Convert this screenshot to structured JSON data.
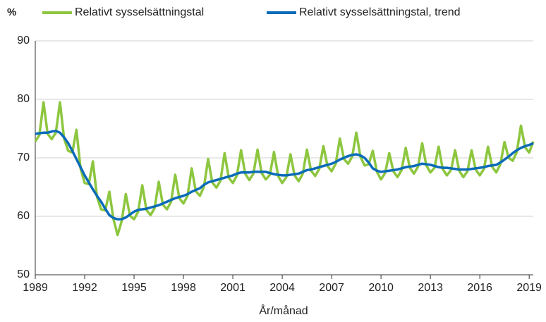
{
  "chart_data": {
    "type": "line",
    "y_unit": "%",
    "xlabel": "År/månad",
    "x": [
      1989,
      1989.25,
      1989.5,
      1989.75,
      1990,
      1990.25,
      1990.5,
      1990.75,
      1991,
      1991.25,
      1991.5,
      1991.75,
      1992,
      1992.25,
      1992.5,
      1992.75,
      1993,
      1993.25,
      1993.5,
      1993.75,
      1994,
      1994.25,
      1994.5,
      1994.75,
      1995,
      1995.25,
      1995.5,
      1995.75,
      1996,
      1996.25,
      1996.5,
      1996.75,
      1997,
      1997.25,
      1997.5,
      1997.75,
      1998,
      1998.25,
      1998.5,
      1998.75,
      1999,
      1999.25,
      1999.5,
      1999.75,
      2000,
      2000.25,
      2000.5,
      2000.75,
      2001,
      2001.25,
      2001.5,
      2001.75,
      2002,
      2002.25,
      2002.5,
      2002.75,
      2003,
      2003.25,
      2003.5,
      2003.75,
      2004,
      2004.25,
      2004.5,
      2004.75,
      2005,
      2005.25,
      2005.5,
      2005.75,
      2006,
      2006.25,
      2006.5,
      2006.75,
      2007,
      2007.25,
      2007.5,
      2007.75,
      2008,
      2008.25,
      2008.5,
      2008.75,
      2009,
      2009.25,
      2009.5,
      2009.75,
      2010,
      2010.25,
      2010.5,
      2010.75,
      2011,
      2011.25,
      2011.5,
      2011.75,
      2012,
      2012.25,
      2012.5,
      2012.75,
      2013,
      2013.25,
      2013.5,
      2013.75,
      2014,
      2014.25,
      2014.5,
      2014.75,
      2015,
      2015.25,
      2015.5,
      2015.75,
      2016,
      2016.25,
      2016.5,
      2016.75,
      2017,
      2017.25,
      2017.5,
      2017.75,
      2018,
      2018.25,
      2018.5,
      2018.75,
      2019,
      2019.25
    ],
    "series": [
      {
        "name": "Relativt sysselsättningstal",
        "color": "#8dc63f",
        "width": 3.5,
        "values": [
          72.8,
          73.9,
          79.5,
          74.1,
          73.2,
          74.3,
          79.5,
          73.3,
          71.2,
          70.9,
          74.8,
          68.2,
          65.7,
          65.5,
          69.4,
          63.3,
          61.2,
          61,
          64.2,
          59.5,
          56.8,
          59.2,
          63.8,
          60.1,
          59.5,
          60.8,
          65.3,
          61.1,
          60.2,
          61.4,
          65.9,
          62,
          61.2,
          62.5,
          67.1,
          63.1,
          62.2,
          63.5,
          68.2,
          64.3,
          63.5,
          65.1,
          69.8,
          65.8,
          64.9,
          66.1,
          70.8,
          66.6,
          65.7,
          67,
          71.3,
          67.3,
          66.2,
          67.3,
          71.4,
          67.4,
          66.3,
          67.1,
          71,
          66.9,
          65.7,
          66.7,
          70.6,
          67,
          66,
          67.3,
          71.4,
          67.8,
          66.9,
          68.1,
          72,
          68.6,
          67.7,
          69,
          73.3,
          69.8,
          69,
          70.2,
          74.3,
          70.2,
          68.7,
          68.9,
          71.2,
          67.6,
          66.3,
          67.4,
          70.8,
          67.7,
          66.7,
          67.9,
          71.7,
          68.3,
          67.3,
          68.5,
          72.5,
          68.7,
          67.5,
          68.3,
          71.9,
          68.1,
          67,
          67.9,
          71.3,
          67.8,
          66.7,
          67.7,
          71.3,
          68,
          67,
          68.1,
          71.9,
          68.5,
          67.5,
          68.9,
          72.7,
          70,
          69.5,
          71,
          75.5,
          71.8,
          70.9,
          72.8
        ]
      },
      {
        "name": "Relativt sysselsättningstal, trend",
        "color": "#0a6bb8",
        "width": 3.5,
        "values": [
          74.1,
          74.2,
          74.3,
          74.3,
          74.5,
          74.6,
          74.3,
          73.5,
          72.5,
          71.2,
          69.8,
          68.4,
          67,
          65.8,
          64.6,
          63.5,
          62.5,
          61.3,
          60.2,
          59.7,
          59.5,
          59.5,
          59.8,
          60.3,
          60.8,
          61.1,
          61.2,
          61.3,
          61.5,
          61.7,
          61.9,
          62.2,
          62.5,
          62.8,
          63.1,
          63.3,
          63.5,
          63.8,
          64.2,
          64.5,
          64.8,
          65.4,
          65.8,
          66,
          66.2,
          66.4,
          66.6,
          66.8,
          67,
          67.3,
          67.5,
          67.5,
          67.5,
          67.6,
          67.6,
          67.6,
          67.6,
          67.4,
          67.2,
          67.1,
          67,
          67,
          67.1,
          67.2,
          67.3,
          67.6,
          67.9,
          68,
          68.2,
          68.4,
          68.6,
          68.8,
          69,
          69.3,
          69.7,
          70,
          70.3,
          70.5,
          70.6,
          70.4,
          70,
          69.2,
          68.2,
          67.8,
          67.6,
          67.7,
          67.8,
          67.9,
          68,
          68.2,
          68.4,
          68.5,
          68.6,
          68.8,
          69,
          68.9,
          68.8,
          68.6,
          68.4,
          68.3,
          68.3,
          68.2,
          68.1,
          68,
          68,
          68,
          68.1,
          68.2,
          68.3,
          68.4,
          68.6,
          68.7,
          68.8,
          69.2,
          69.7,
          70.2,
          70.8,
          71.3,
          71.7,
          72,
          72.2,
          72.5
        ]
      }
    ],
    "xlim": [
      1989,
      2019.25
    ],
    "xticks": [
      1989,
      1992,
      1995,
      1998,
      2001,
      2004,
      2007,
      2010,
      2013,
      2016,
      2019
    ],
    "ylim": [
      50,
      90
    ],
    "yticks": [
      50,
      60,
      70,
      80,
      90
    ],
    "grid": true
  }
}
